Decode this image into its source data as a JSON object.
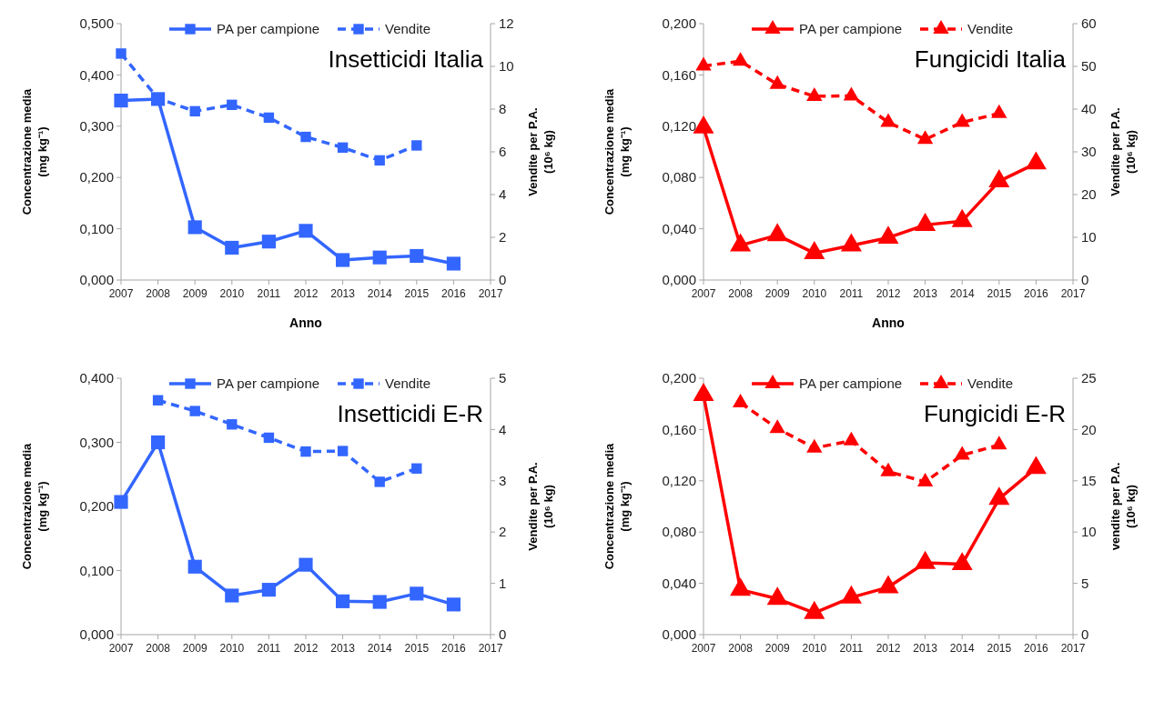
{
  "chart_data": [
    {
      "type": "line",
      "title": "Insetticidi Italia",
      "xlabel": "Anno",
      "ylabel": "Concentrazione media\n(mg kg⁻¹)",
      "y2label": "Vendite per P.A.\n(10⁶ kg)",
      "x": [
        2007,
        2008,
        2009,
        2010,
        2011,
        2012,
        2013,
        2014,
        2015,
        2016
      ],
      "xlim": [
        2007,
        2017
      ],
      "xticks": [
        2007,
        2008,
        2009,
        2010,
        2011,
        2012,
        2013,
        2014,
        2015,
        2016,
        2017
      ],
      "ylim": [
        0,
        0.5
      ],
      "yticks": [
        {
          "value": 0,
          "label": "0,000"
        },
        {
          "value": 0.1,
          "label": "0,100"
        },
        {
          "value": 0.2,
          "label": "0,200"
        },
        {
          "value": 0.3,
          "label": "0,300"
        },
        {
          "value": 0.4,
          "label": "0,400"
        },
        {
          "value": 0.5,
          "label": "0,500"
        }
      ],
      "y2lim": [
        0,
        12
      ],
      "y2ticks": [
        0,
        2,
        4,
        6,
        8,
        10,
        12
      ],
      "legend": "top",
      "marker": "square",
      "series": [
        {
          "name": "PA per campione",
          "color": "#3366ff",
          "line_style": "solid",
          "values": [
            0.35,
            0.353,
            0.103,
            0.063,
            0.075,
            0.096,
            0.039,
            0.044,
            0.047,
            0.032
          ]
        },
        {
          "name": "Vendite",
          "color": "#3366ff",
          "line_style": "dashed",
          "axis": "y2",
          "values": [
            10.6,
            8.5,
            7.9,
            8.2,
            7.6,
            6.7,
            6.2,
            5.6,
            6.3,
            null
          ]
        }
      ]
    },
    {
      "type": "line",
      "title": "Fungicidi Italia",
      "xlabel": "Anno",
      "ylabel": "Concentrazione media\n(mg kg⁻¹)",
      "y2label": "Vendite per P.A.\n(10⁶ kg)",
      "x": [
        2007,
        2008,
        2009,
        2010,
        2011,
        2012,
        2013,
        2014,
        2015,
        2016
      ],
      "xlim": [
        2007,
        2017
      ],
      "xticks": [
        2007,
        2008,
        2009,
        2010,
        2011,
        2012,
        2013,
        2014,
        2015,
        2016,
        2017
      ],
      "ylim": [
        0,
        0.2
      ],
      "yticks": [
        {
          "value": 0,
          "label": "0,000"
        },
        {
          "value": 0.04,
          "label": "0,040"
        },
        {
          "value": 0.08,
          "label": "0,080"
        },
        {
          "value": 0.12,
          "label": "0,120"
        },
        {
          "value": 0.16,
          "label": "0,160"
        },
        {
          "value": 0.2,
          "label": "0,200"
        }
      ],
      "y2lim": [
        0,
        60
      ],
      "y2ticks": [
        0,
        10,
        20,
        30,
        40,
        50,
        60
      ],
      "legend": "top",
      "marker": "triangle",
      "series": [
        {
          "name": "PA per campione",
          "color": "#ff0000",
          "line_style": "solid",
          "values": [
            0.119,
            0.027,
            0.035,
            0.021,
            0.027,
            0.033,
            0.043,
            0.046,
            0.077,
            0.091
          ]
        },
        {
          "name": "Vendite",
          "color": "#ff0000",
          "line_style": "dashed",
          "axis": "y2",
          "values": [
            50.1,
            51.2,
            45.8,
            43.0,
            43.1,
            36.9,
            32.9,
            36.9,
            39.0,
            null
          ]
        }
      ]
    },
    {
      "type": "line",
      "title": "Insetticidi E-R",
      "ylabel": "Concentrazione media\n(mg kg⁻¹)",
      "y2label": "Vendite per P.A.\n(10⁶ kg)",
      "x": [
        2007,
        2008,
        2009,
        2010,
        2011,
        2012,
        2013,
        2014,
        2015,
        2016
      ],
      "xlim": [
        2007,
        2017
      ],
      "xticks": [
        2007,
        2008,
        2009,
        2010,
        2011,
        2012,
        2013,
        2014,
        2015,
        2016,
        2017
      ],
      "ylim": [
        0,
        0.4
      ],
      "yticks": [
        {
          "value": 0,
          "label": "0,000"
        },
        {
          "value": 0.1,
          "label": "0,100"
        },
        {
          "value": 0.2,
          "label": "0,200"
        },
        {
          "value": 0.3,
          "label": "0,300"
        },
        {
          "value": 0.4,
          "label": "0,400"
        }
      ],
      "y2lim": [
        0,
        5
      ],
      "y2ticks": [
        0,
        1,
        2,
        3,
        4,
        5
      ],
      "legend": "top",
      "marker": "square",
      "series": [
        {
          "name": "PA per campione",
          "color": "#3366ff",
          "line_style": "solid",
          "values": [
            0.207,
            0.3,
            0.106,
            0.061,
            0.07,
            0.109,
            0.052,
            0.051,
            0.064,
            0.047
          ]
        },
        {
          "name": "Vendite",
          "color": "#3366ff",
          "line_style": "dashed",
          "axis": "y2",
          "values": [
            null,
            4.57,
            4.36,
            4.1,
            3.84,
            3.57,
            3.58,
            2.98,
            3.24,
            null
          ]
        }
      ]
    },
    {
      "type": "line",
      "title": "Fungicidi E-R",
      "ylabel": "Concentrazione media\n(mg kg⁻¹)",
      "y2label": "vendite per P.A.\n(10⁶ kg)",
      "x": [
        2007,
        2008,
        2009,
        2010,
        2011,
        2012,
        2013,
        2014,
        2015,
        2016
      ],
      "xlim": [
        2007,
        2017
      ],
      "xticks": [
        2007,
        2008,
        2009,
        2010,
        2011,
        2012,
        2013,
        2014,
        2015,
        2016,
        2017
      ],
      "ylim": [
        0,
        0.2
      ],
      "yticks": [
        {
          "value": 0,
          "label": "0,000"
        },
        {
          "value": 0.04,
          "label": "0,040"
        },
        {
          "value": 0.08,
          "label": "0,080"
        },
        {
          "value": 0.12,
          "label": "0,120"
        },
        {
          "value": 0.16,
          "label": "0,160"
        },
        {
          "value": 0.2,
          "label": "0,200"
        }
      ],
      "y2lim": [
        0,
        25
      ],
      "y2ticks": [
        0,
        5,
        10,
        15,
        20,
        25
      ],
      "legend": "top",
      "marker": "triangle",
      "series": [
        {
          "name": "PA per campione",
          "color": "#ff0000",
          "line_style": "solid",
          "values": [
            0.187,
            0.035,
            0.028,
            0.017,
            0.029,
            0.037,
            0.056,
            0.055,
            0.106,
            0.13
          ]
        },
        {
          "name": "Vendite",
          "color": "#ff0000",
          "line_style": "dashed",
          "axis": "y2",
          "values": [
            null,
            22.6,
            20.1,
            18.2,
            18.9,
            15.9,
            14.9,
            17.5,
            18.5,
            null
          ]
        }
      ]
    }
  ]
}
